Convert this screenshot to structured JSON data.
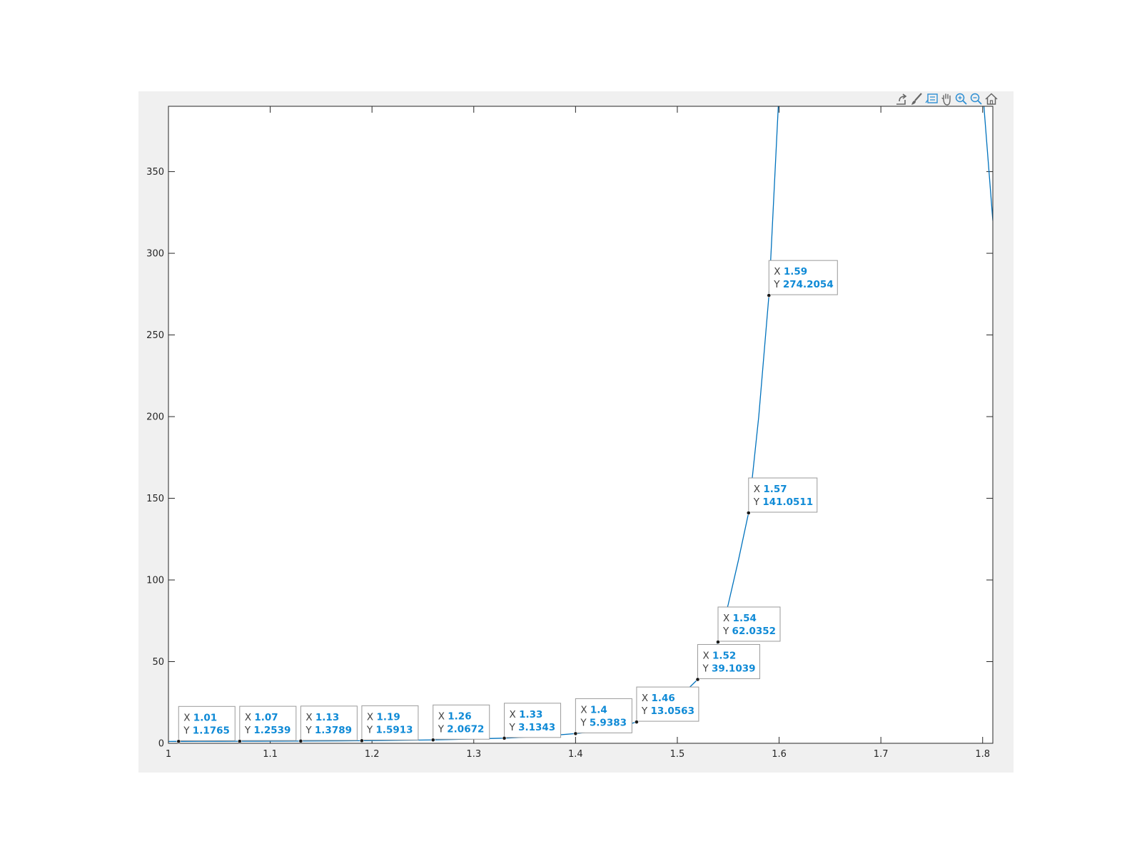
{
  "toolbar": {
    "icons": [
      "export-icon",
      "brush-icon",
      "datatip-icon",
      "pan-icon",
      "zoom-in-icon",
      "zoom-out-icon",
      "home-icon"
    ]
  },
  "colors": {
    "line": "#0072bd",
    "tip_value": "#0f8ad6",
    "background": "#f0f0f0"
  },
  "chart_data": {
    "type": "line",
    "title": "",
    "xlabel": "",
    "ylabel": "",
    "xlim": [
      1,
      1.81
    ],
    "ylim": [
      0,
      390
    ],
    "grid": false,
    "xticks": [
      1,
      1.1,
      1.2,
      1.3,
      1.4,
      1.5,
      1.6,
      1.7,
      1.8
    ],
    "xtick_labels": [
      "1",
      "1.1",
      "1.2",
      "1.3",
      "1.4",
      "1.5",
      "1.6",
      "1.7",
      "1.8"
    ],
    "yticks": [
      0,
      50,
      100,
      150,
      200,
      250,
      300,
      350
    ],
    "ytick_labels": [
      "0",
      "50",
      "100",
      "150",
      "200",
      "250",
      "300",
      "350"
    ],
    "series": [
      {
        "x": [
          1.0,
          1.01,
          1.03,
          1.05,
          1.07,
          1.09,
          1.11,
          1.13,
          1.15,
          1.17,
          1.19,
          1.21,
          1.23,
          1.26,
          1.28,
          1.3,
          1.33,
          1.35,
          1.37,
          1.4,
          1.42,
          1.44,
          1.46,
          1.48,
          1.5,
          1.52,
          1.53,
          1.54,
          1.55,
          1.56,
          1.57,
          1.58,
          1.59,
          1.6,
          1.8,
          1.81
        ],
        "y": [
          1.15,
          1.1765,
          1.2,
          1.23,
          1.2539,
          1.28,
          1.33,
          1.3789,
          1.43,
          1.5,
          1.5913,
          1.7,
          1.85,
          2.0672,
          2.35,
          2.7,
          3.1343,
          3.7,
          4.5,
          5.9383,
          7.3,
          9.5,
          13.0563,
          19.0,
          27.0,
          39.1039,
          48.0,
          62.0352,
          85.0,
          112.0,
          141.0511,
          200.0,
          274.2054,
          400.0,
          400.0,
          320.0
        ]
      }
    ],
    "datatips": [
      {
        "x_label": "X",
        "x": "1.01",
        "y_label": "Y",
        "y": "1.1765"
      },
      {
        "x_label": "X",
        "x": "1.07",
        "y_label": "Y",
        "y": "1.2539"
      },
      {
        "x_label": "X",
        "x": "1.13",
        "y_label": "Y",
        "y": "1.3789"
      },
      {
        "x_label": "X",
        "x": "1.19",
        "y_label": "Y",
        "y": "1.5913"
      },
      {
        "x_label": "X",
        "x": "1.26",
        "y_label": "Y",
        "y": "2.0672"
      },
      {
        "x_label": "X",
        "x": "1.33",
        "y_label": "Y",
        "y": "3.1343"
      },
      {
        "x_label": "X",
        "x": "1.4",
        "y_label": "Y",
        "y": "5.9383"
      },
      {
        "x_label": "X",
        "x": "1.46",
        "y_label": "Y",
        "y": "13.0563"
      },
      {
        "x_label": "X",
        "x": "1.52",
        "y_label": "Y",
        "y": "39.1039"
      },
      {
        "x_label": "X",
        "x": "1.54",
        "y_label": "Y",
        "y": "62.0352"
      },
      {
        "x_label": "X",
        "x": "1.57",
        "y_label": "Y",
        "y": "141.0511"
      },
      {
        "x_label": "X",
        "x": "1.59",
        "y_label": "Y",
        "y": "274.2054"
      }
    ]
  }
}
